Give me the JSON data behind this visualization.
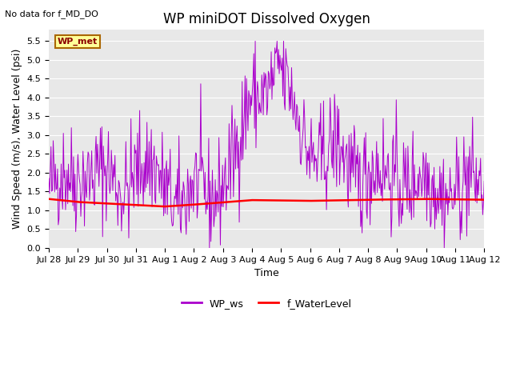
{
  "title": "WP miniDOT Dissolved Oxygen",
  "top_left_text": "No data for f_MD_DO",
  "wp_met_label": "WP_met",
  "ylabel": "Wind Speed (m/s), Water Level (psi)",
  "xlabel": "Time",
  "ylim": [
    0.0,
    5.8
  ],
  "yticks": [
    0.0,
    0.5,
    1.0,
    1.5,
    2.0,
    2.5,
    3.0,
    3.5,
    4.0,
    4.5,
    5.0,
    5.5
  ],
  "bg_color": "#e8e8e8",
  "fig_bg_color": "#ffffff",
  "ws_color": "#aa00cc",
  "wl_color": "#ff0000",
  "legend_labels": [
    "WP_ws",
    "f_WaterLevel"
  ],
  "xmin": 0,
  "xmax": 15,
  "xtick_positions": [
    0,
    1,
    2,
    3,
    4,
    5,
    6,
    7,
    8,
    9,
    10,
    11,
    12,
    13,
    14,
    15
  ],
  "xtick_labels": [
    "Jul 28",
    "Jul 29",
    "Jul 30",
    "Jul 31",
    "Aug 1",
    "Aug 2",
    "Aug 3",
    "Aug 4",
    "Aug 5",
    "Aug 6",
    "Aug 7",
    "Aug 8",
    "Aug 9",
    "Aug 10",
    "Aug 11",
    "Aug 12"
  ],
  "title_fontsize": 12,
  "axis_fontsize": 9,
  "tick_fontsize": 8
}
